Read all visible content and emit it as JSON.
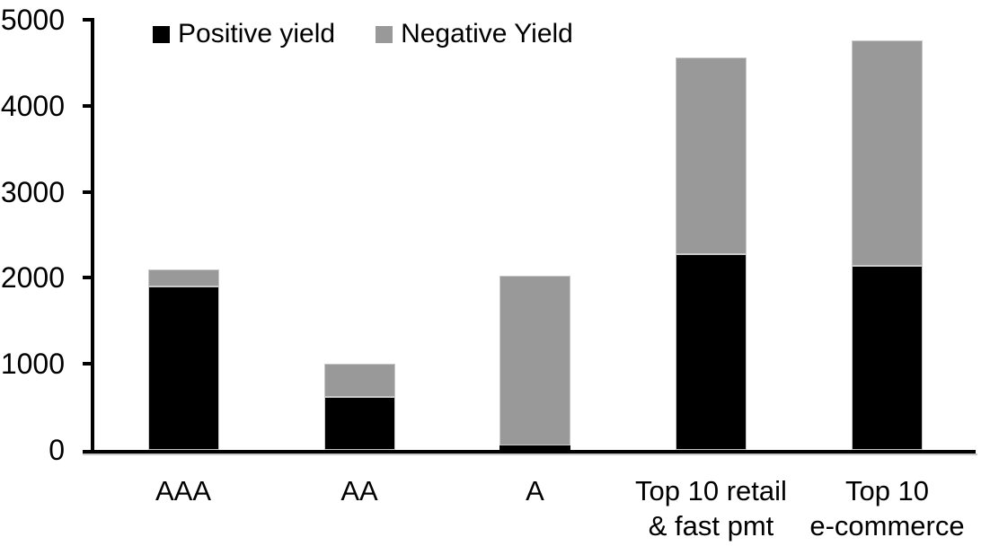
{
  "chart_data": {
    "type": "bar",
    "stacked": true,
    "title": "",
    "xlabel": "",
    "ylabel": "",
    "categories": [
      "AAA",
      "AA",
      "A",
      "Top 10 retail & fast pmt",
      "Top 10 e-commerce"
    ],
    "category_labels_display": [
      "AAA",
      "AA",
      "A",
      "Top 10 retail\n& fast pmt",
      "Top 10\ne-commerce"
    ],
    "series": [
      {
        "name": "Positive yield",
        "color": "#000000",
        "values": [
          1900,
          620,
          50,
          2280,
          2140
        ]
      },
      {
        "name": "Negative Yield",
        "color": "#999999",
        "values": [
          200,
          380,
          1980,
          2280,
          2620
        ]
      }
    ],
    "stacked_totals": [
      2100,
      1000,
      2030,
      4560,
      4760
    ],
    "ylim": [
      0,
      5000
    ],
    "ytick_values": [
      0,
      1000,
      2000,
      3000,
      4000,
      5000
    ],
    "yticks": [
      "0",
      "1000",
      "2000",
      "3000",
      "4000",
      "5000"
    ],
    "legend_position": "top",
    "grid": false,
    "axis_color": "#000000",
    "background_color": "#ffffff"
  }
}
